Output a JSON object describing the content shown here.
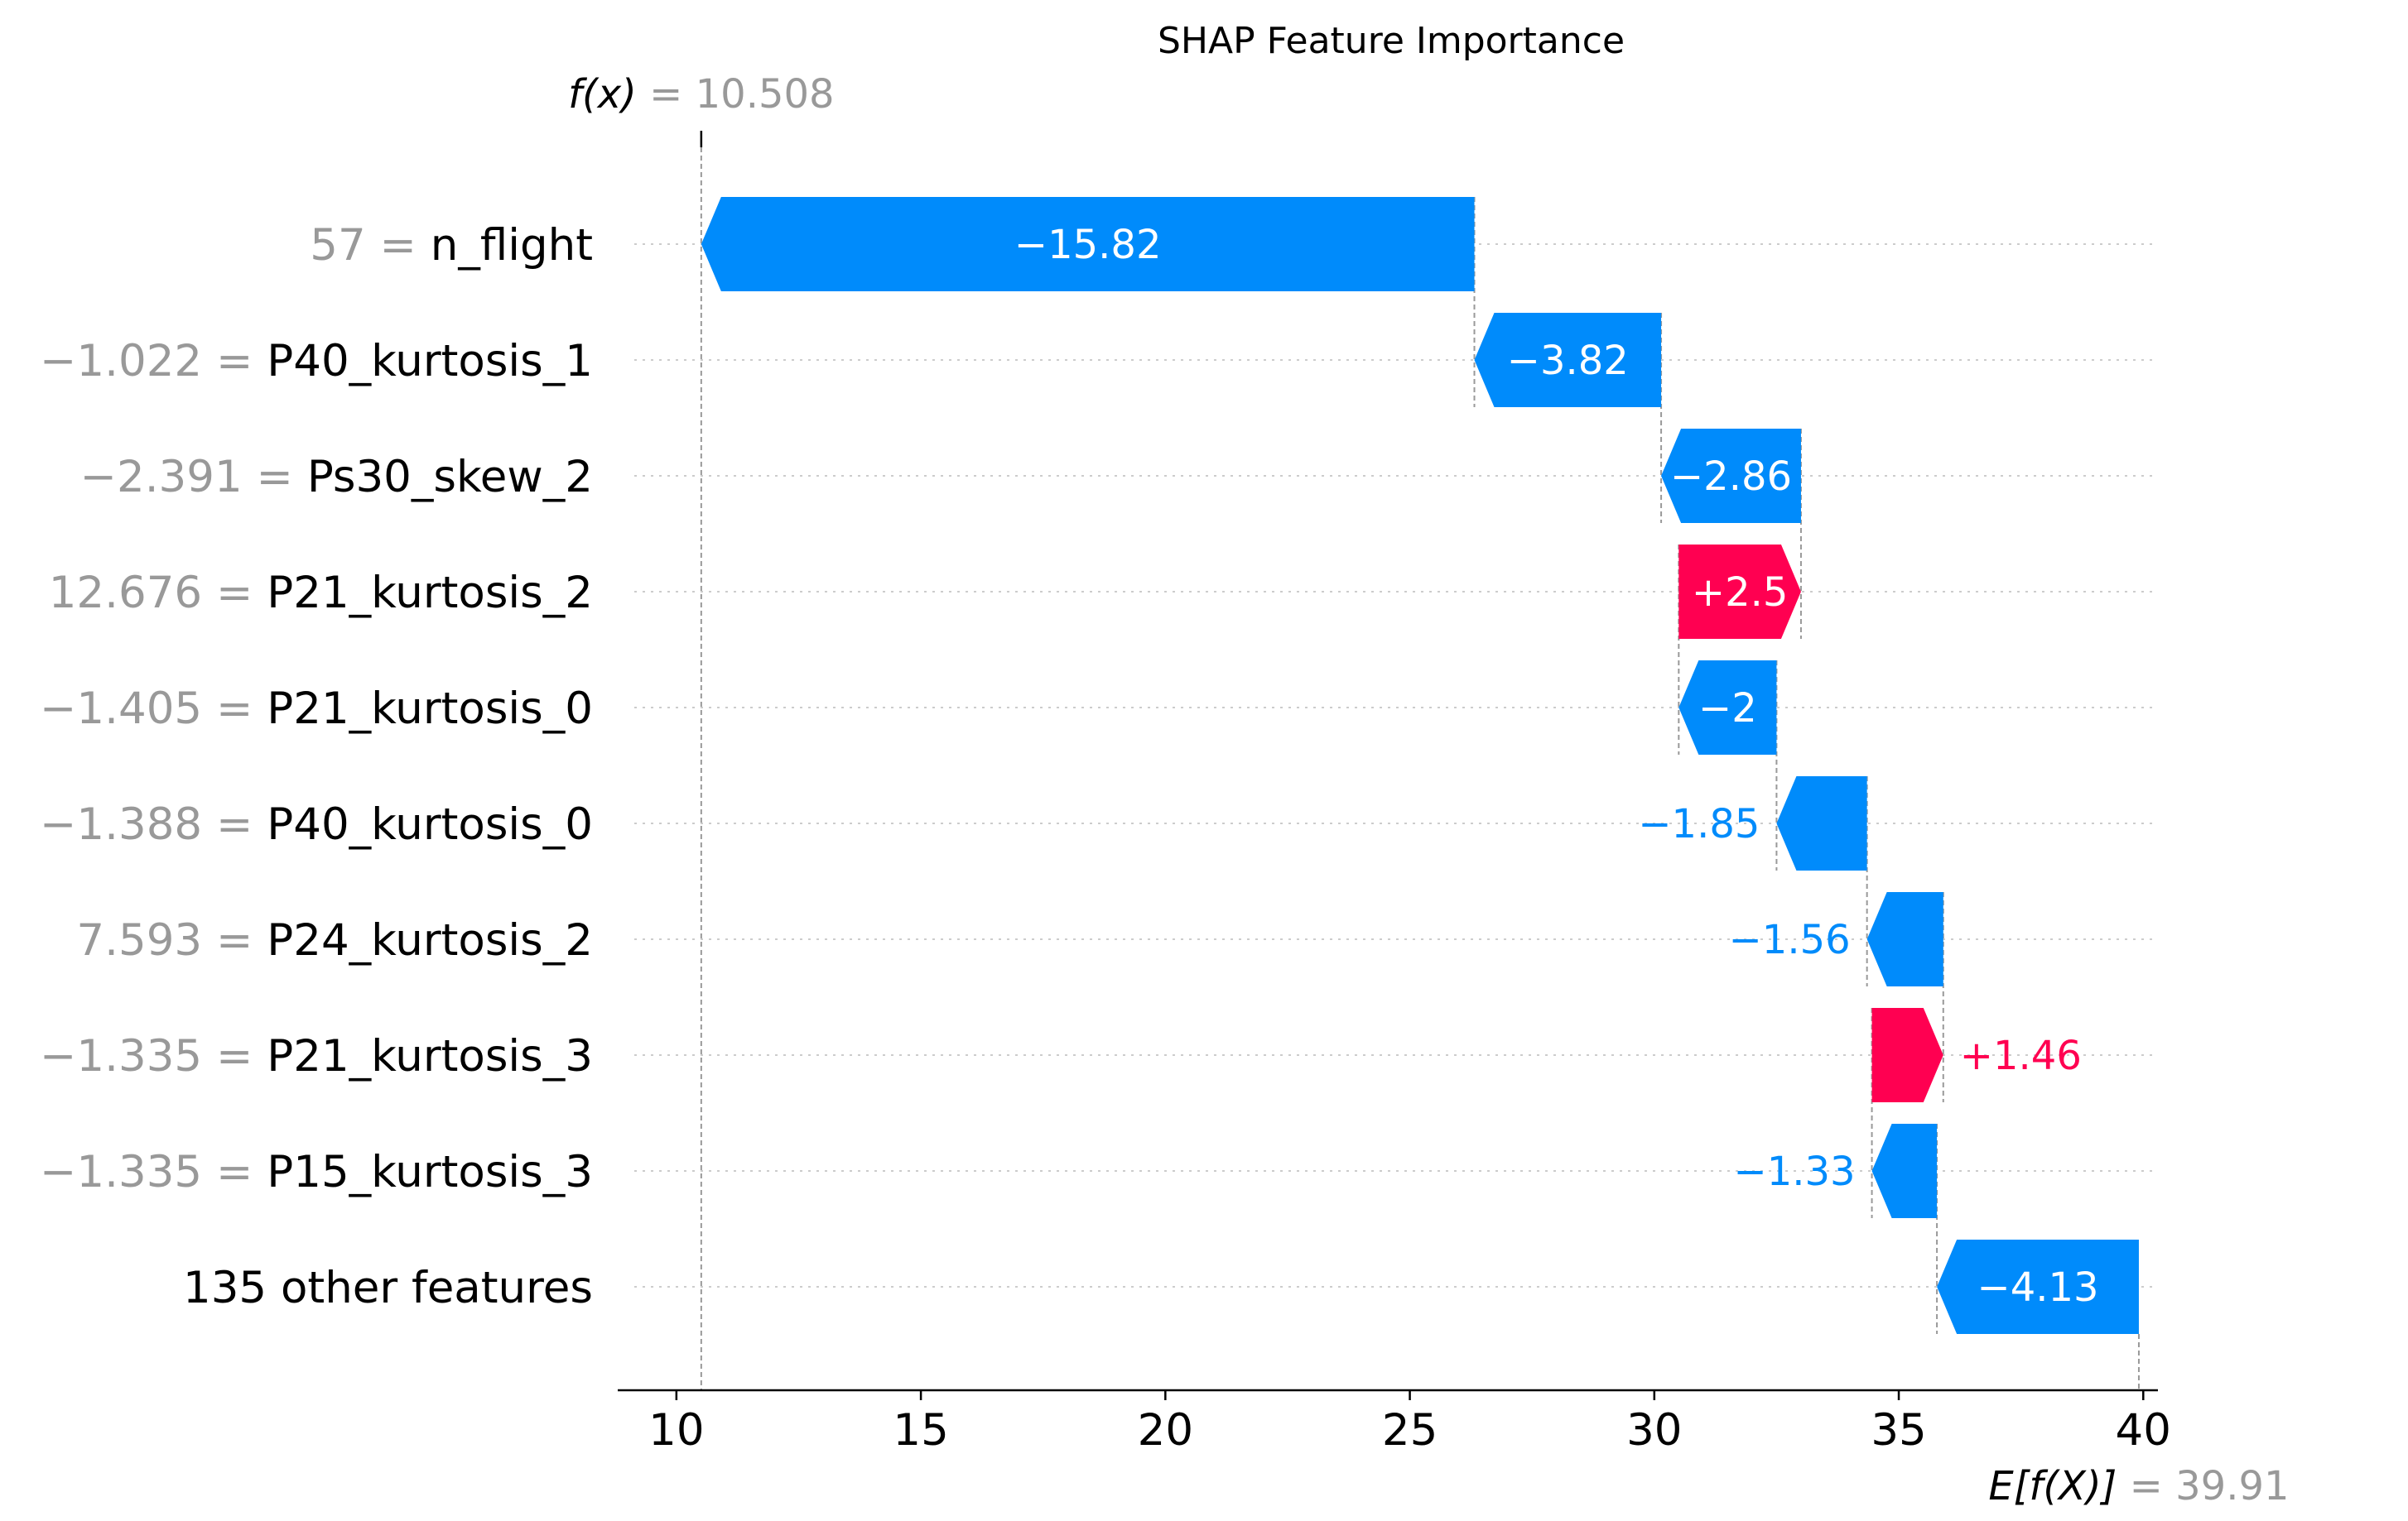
{
  "chart_data": {
    "type": "bar",
    "variant": "shap-waterfall",
    "title": "SHAP Feature Importance",
    "fx": {
      "text_prefix": "f(x)",
      "value": 10.508,
      "value_text": "10.508"
    },
    "expected": {
      "text_prefix": "E[f(X)]",
      "value": 39.91,
      "value_text": "39.91"
    },
    "xlim": [
      8.8,
      40.3
    ],
    "x_ticks": [
      10,
      15,
      20,
      25,
      30,
      35,
      40
    ],
    "x_tick_labels": [
      "10",
      "15",
      "20",
      "25",
      "30",
      "35",
      "40"
    ],
    "colors": {
      "negative": "#008bfb",
      "positive": "#ff0051",
      "grid": "#cccccc",
      "axis": "#000000",
      "muted": "#999999"
    },
    "features": [
      {
        "value_text": "57",
        "name": "n_flight",
        "start": 26.32,
        "end": 10.508,
        "shap": -15.82,
        "label": "−15.82"
      },
      {
        "value_text": "−1.022",
        "name": "P40_kurtosis_1",
        "start": 30.14,
        "end": 26.32,
        "shap": -3.82,
        "label": "−3.82"
      },
      {
        "value_text": "−2.391",
        "name": "Ps30_skew_2",
        "start": 33.0,
        "end": 30.14,
        "shap": -2.86,
        "label": "−2.86"
      },
      {
        "value_text": "12.676",
        "name": "P21_kurtosis_2",
        "start": 30.5,
        "end": 33.0,
        "shap": 2.5,
        "label": "+2.5"
      },
      {
        "value_text": "−1.405",
        "name": "P21_kurtosis_0",
        "start": 32.5,
        "end": 30.5,
        "shap": -2.0,
        "label": "−2"
      },
      {
        "value_text": "−1.388",
        "name": "P40_kurtosis_0",
        "start": 34.35,
        "end": 32.5,
        "shap": -1.85,
        "label": "−1.85"
      },
      {
        "value_text": "7.593",
        "name": "P24_kurtosis_2",
        "start": 35.91,
        "end": 34.35,
        "shap": -1.56,
        "label": "−1.56"
      },
      {
        "value_text": "−1.335",
        "name": "P21_kurtosis_3",
        "start": 34.45,
        "end": 35.91,
        "shap": 1.46,
        "label": "+1.46"
      },
      {
        "value_text": "−1.335",
        "name": "P15_kurtosis_3",
        "start": 35.78,
        "end": 34.45,
        "shap": -1.33,
        "label": "−1.33"
      },
      {
        "value_text": "",
        "name": "135 other features",
        "start": 39.91,
        "end": 35.78,
        "shap": -4.13,
        "label": "−4.13"
      }
    ]
  }
}
